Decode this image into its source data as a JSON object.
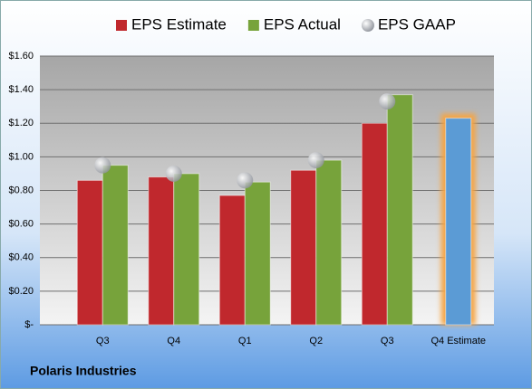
{
  "chart_data": {
    "type": "bar",
    "categories": [
      "Q3",
      "Q4",
      "Q1",
      "Q2",
      "Q3",
      "Q4 Estimate"
    ],
    "series": [
      {
        "name": "EPS Estimate",
        "color": "#c0282d",
        "values": [
          0.86,
          0.88,
          0.77,
          0.92,
          1.2,
          1.23
        ],
        "colors": [
          "#c0282d",
          "#c0282d",
          "#c0282d",
          "#c0282d",
          "#c0282d",
          "#5b9bd5"
        ]
      },
      {
        "name": "EPS Actual",
        "color": "#77a33b",
        "values": [
          0.95,
          0.9,
          0.85,
          0.98,
          1.37,
          null
        ]
      },
      {
        "name": "EPS GAAP",
        "color": "#b8bcc4",
        "type": "scatter",
        "values": [
          0.95,
          0.9,
          0.86,
          0.98,
          1.33,
          null
        ]
      }
    ],
    "ylim": [
      0,
      1.6
    ],
    "yticks": [
      {
        "value": 0,
        "label": "$-"
      },
      {
        "value": 0.2,
        "label": "$0.20"
      },
      {
        "value": 0.4,
        "label": "$0.40"
      },
      {
        "value": 0.6,
        "label": "$0.60"
      },
      {
        "value": 0.8,
        "label": "$0.80"
      },
      {
        "value": 1.0,
        "label": "$1.00"
      },
      {
        "value": 1.2,
        "label": "$1.20"
      },
      {
        "value": 1.4,
        "label": "$1.40"
      },
      {
        "value": 1.6,
        "label": "$1.60"
      }
    ],
    "grid": true,
    "footer": "Polaris Industries"
  }
}
